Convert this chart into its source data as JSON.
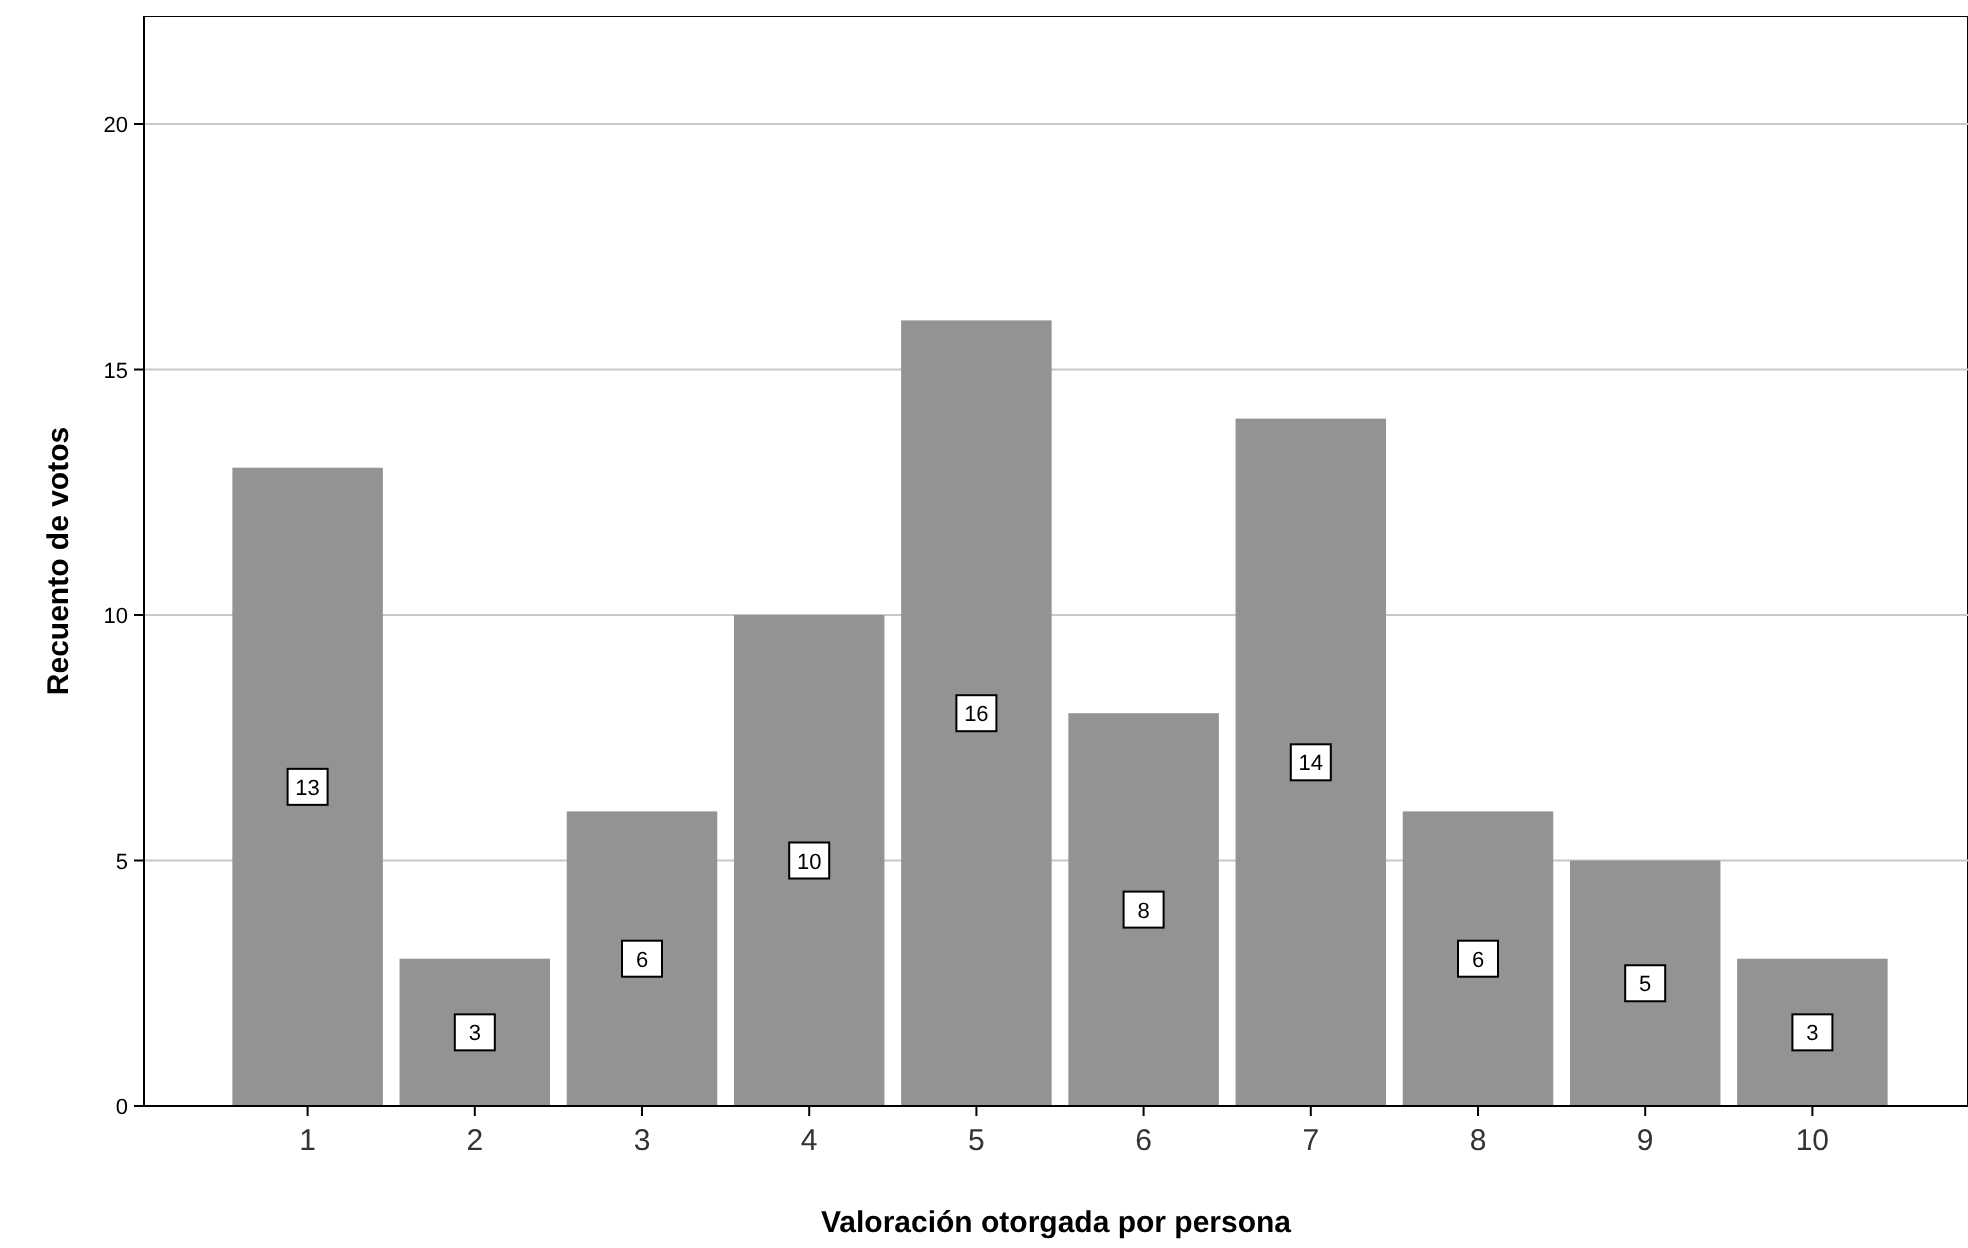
{
  "chart_data": {
    "type": "bar",
    "xlabel": "Valoración otorgada por persona",
    "ylabel": "Recuento de votos",
    "categories": [
      "1",
      "2",
      "3",
      "4",
      "5",
      "6",
      "7",
      "8",
      "9",
      "10"
    ],
    "values": [
      13,
      3,
      6,
      10,
      16,
      8,
      14,
      6,
      5,
      3
    ],
    "color": "#939393",
    "ylim": [
      0,
      22.2
    ],
    "yticks": [
      0,
      5,
      10,
      15,
      20
    ],
    "grid": "y",
    "data_labels": true
  }
}
